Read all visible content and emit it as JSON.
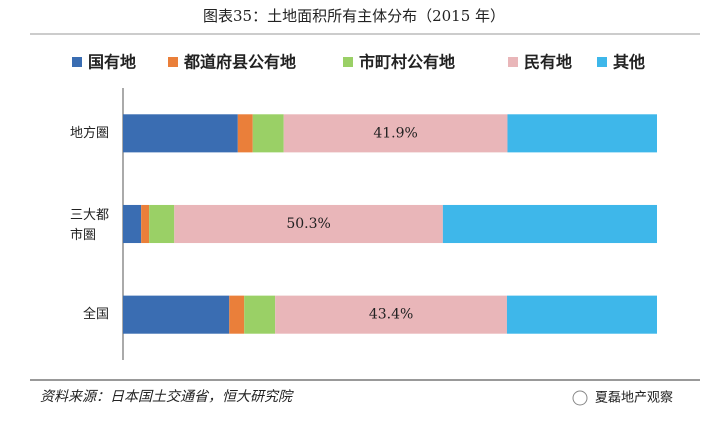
{
  "chart_data": {
    "type": "stacked-bar-horizontal",
    "title": "图表35：土地面积所有主体分布（2015 年）",
    "categories": [
      "地方圏",
      "三大都市圏",
      "全国"
    ],
    "xlim": [
      0,
      100
    ],
    "series": [
      {
        "name": "国有地",
        "color": "#3a6db2",
        "values": [
          21.5,
          3.4,
          19.9
        ]
      },
      {
        "name": "都道府县公有地",
        "color": "#ea7f3a",
        "values": [
          2.8,
          1.5,
          2.8
        ]
      },
      {
        "name": "市町村公有地",
        "color": "#9ad066",
        "values": [
          5.8,
          4.7,
          5.8
        ]
      },
      {
        "name": "民有地",
        "color": "#e9b6b9",
        "values": [
          41.9,
          50.3,
          43.4
        ],
        "value_labels": [
          "41.9%",
          "50.3%",
          "43.4%"
        ]
      },
      {
        "name": "其他",
        "color": "#3eb7ea",
        "values": [
          28.0,
          40.1,
          28.1
        ]
      }
    ],
    "source": "资料来源：日本国土交通省，恒大研究院",
    "watermark": "夏磊地产观察"
  }
}
